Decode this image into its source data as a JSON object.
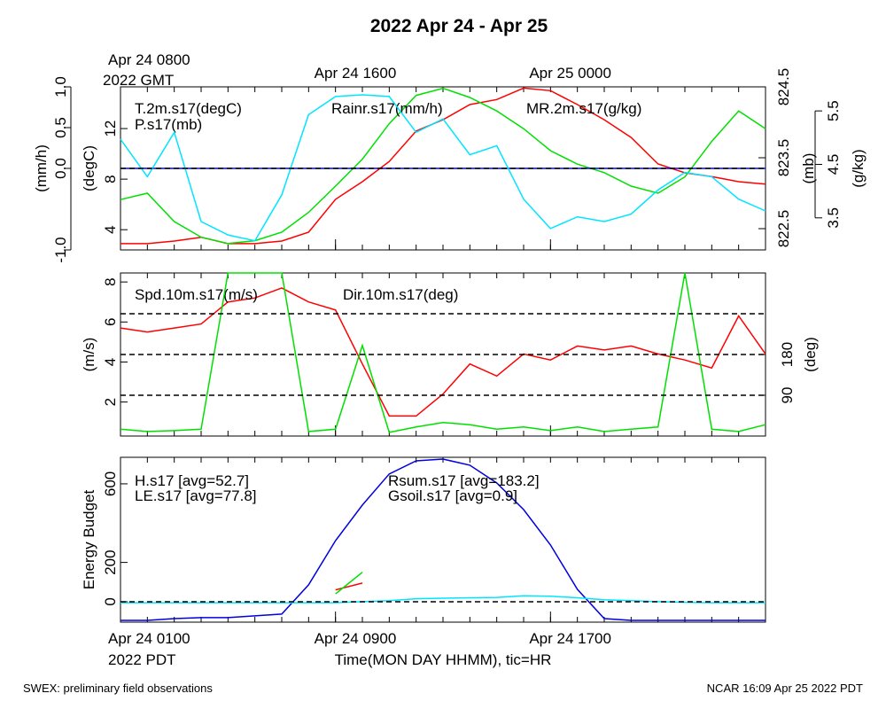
{
  "chart_data": {
    "type": "multi-panel",
    "title": "2022 Apr 24 - Apr 25",
    "xlabel": "Time(MON DAY HHMM), tic=HR",
    "top_xsublabel": "2022 GMT",
    "bottom_xsublabel": "2022 PDT",
    "footer_left": "SWEX: preliminary field observations",
    "footer_right": "NCAR 16:09 Apr 25 2022 PDT",
    "x": [
      0,
      1,
      2,
      3,
      4,
      5,
      6,
      7,
      8,
      9,
      10,
      11,
      12,
      13,
      14,
      15,
      16,
      17,
      18,
      19,
      20,
      21,
      22,
      23,
      24
    ],
    "xlim": [
      0,
      24
    ],
    "xticks": [
      {
        "value": 0,
        "label": "Apr 24 0100"
      },
      {
        "value": 8,
        "label": "Apr 24 0900"
      },
      {
        "value": 16,
        "label": "Apr 24 1700"
      }
    ],
    "top_xticks": [
      {
        "value": 0,
        "label": "Apr 24 0800"
      },
      {
        "value": 8,
        "label": "Apr 24 1600"
      },
      {
        "value": 16,
        "label": "Apr 25 0000"
      }
    ],
    "panels": [
      {
        "type": "line",
        "axes": [
          {
            "label": "(mm/h)",
            "ylim": [
              -1,
              1
            ],
            "yticks": [
              {
                "value": -1,
                "label": "-1.0"
              },
              {
                "value": 0,
                "label": "0.0"
              },
              {
                "value": 0.5,
                "label": "0.5"
              },
              {
                "value": 1,
                "label": "1.0"
              }
            ]
          },
          {
            "label": "(degC)",
            "ylim": [
              2.4,
              15.3
            ],
            "yticks": [
              4,
              8,
              12
            ]
          },
          {
            "label": "(mb)",
            "ylim": [
              822.2,
              824.5
            ],
            "yticks": [
              822.5,
              823.5,
              824.5
            ]
          },
          {
            "label": "(g/kg)",
            "ylim": [
              2.9,
              5.95
            ],
            "yticks": [
              3.5,
              4.5,
              5.5
            ]
          }
        ],
        "hlines": [
          {
            "axis": 0,
            "values": [
              0
            ]
          }
        ],
        "series": [
          {
            "name": "T.2m.s17(degC)",
            "color": "#ff0000",
            "axis": 1,
            "values": [
              2.9,
              2.9,
              3.1,
              3.4,
              2.9,
              2.9,
              3.1,
              3.8,
              6.4,
              7.8,
              9.4,
              11.8,
              12.7,
              13.9,
              14.3,
              15.2,
              15.0,
              13.9,
              12.7,
              11.3,
              9.2,
              8.5,
              8.2,
              7.8,
              7.6
            ]
          },
          {
            "name": "P.s17(mb)",
            "color": "#00e000",
            "axis": 2,
            "values": [
              822.91,
              823.0,
              822.6,
              822.38,
              822.29,
              822.33,
              822.45,
              822.73,
              823.1,
              823.48,
              823.98,
              824.38,
              824.48,
              824.35,
              824.16,
              823.91,
              823.6,
              823.41,
              823.29,
              823.1,
              823.0,
              823.23,
              823.73,
              824.16,
              823.91
            ]
          },
          {
            "name": "Rainr.s17(mm/h)",
            "color": "#0000ff",
            "axis": 0,
            "values": [
              0,
              0,
              0,
              0,
              0,
              0,
              0,
              0,
              0,
              0,
              0,
              0,
              0,
              0,
              0,
              0,
              0,
              0,
              0,
              0,
              0,
              0,
              0,
              0,
              0
            ]
          },
          {
            "name": "MR.2m.s17(g/kg)",
            "color": "#00e5ff",
            "axis": 3,
            "values": [
              4.97,
              4.27,
              5.1,
              3.43,
              3.18,
              3.07,
              3.93,
              5.43,
              5.77,
              5.8,
              5.77,
              5.1,
              5.35,
              4.68,
              4.85,
              3.85,
              3.3,
              3.52,
              3.43,
              3.57,
              4.02,
              4.35,
              4.27,
              3.85,
              3.63
            ]
          }
        ]
      },
      {
        "type": "line",
        "axes": [
          {
            "label": "(m/s)",
            "ylim": [
              0.3,
              8.45
            ],
            "yticks": [
              2,
              4,
              6,
              8
            ]
          },
          {
            "label": "(deg)",
            "ylim": [
              0,
              360
            ],
            "yticks": [
              90,
              180
            ]
          }
        ],
        "hlines": [
          {
            "axis": 1,
            "values": [
              90,
              180,
              270
            ]
          }
        ],
        "series": [
          {
            "name": "Spd.10m.s17(m/s)",
            "color": "#ff0000",
            "axis": 0,
            "values": [
              5.7,
              5.5,
              5.7,
              5.9,
              7.0,
              7.2,
              7.7,
              7.0,
              6.6,
              3.9,
              1.3,
              1.3,
              2.4,
              3.9,
              3.3,
              4.4,
              4.1,
              4.8,
              4.6,
              4.8,
              4.4,
              4.1,
              3.7,
              6.3,
              4.4
            ]
          },
          {
            "name": "Dir.10m.s17(deg)",
            "color": "#00e000",
            "axis": 1,
            "values": [
              15,
              10,
              12,
              15,
              360,
              360,
              360,
              10,
              15,
              200,
              8,
              20,
              30,
              25,
              15,
              20,
              12,
              20,
              10,
              15,
              20,
              360,
              15,
              10,
              25
            ]
          }
        ]
      },
      {
        "type": "line",
        "axes": [
          {
            "label": "Energy Budget",
            "ylim": [
              -104,
              735
            ],
            "yticks": [
              0,
              200,
              600
            ]
          }
        ],
        "hlines": [
          {
            "axis": 0,
            "values": [
              0
            ]
          }
        ],
        "series": [
          {
            "name": "H.s17 [avg=52.7]",
            "color": "#ff0000",
            "axis": 0,
            "values": [
              null,
              null,
              null,
              null,
              null,
              null,
              null,
              null,
              60,
              95,
              null,
              null,
              null,
              null,
              null,
              null,
              null,
              null,
              null,
              null,
              null,
              null,
              null,
              null,
              null
            ]
          },
          {
            "name": "LE.s17 [avg=77.8]",
            "color": "#00e000",
            "axis": 0,
            "values": [
              null,
              null,
              null,
              null,
              null,
              null,
              null,
              null,
              40,
              150,
              null,
              null,
              null,
              null,
              null,
              null,
              null,
              null,
              null,
              null,
              null,
              null,
              null,
              null,
              null
            ]
          },
          {
            "name": "Rsum.s17 [avg=183.2]",
            "color": "#0000e0",
            "axis": 0,
            "values": [
              -95,
              -95,
              -86,
              -81,
              -81,
              -72,
              -63,
              86,
              311,
              492,
              650,
              717,
              726,
              695,
              604,
              469,
              289,
              63,
              -86,
              -95,
              -95,
              -95,
              -95,
              -95,
              -95
            ]
          },
          {
            "name": "Gsoil.s17 [avg=0.9]",
            "color": "#00e5ff",
            "axis": 0,
            "values": [
              -5,
              -5,
              -5,
              -5,
              -5,
              -5,
              -5,
              -5,
              -5,
              0,
              5,
              15,
              18,
              20,
              22,
              30,
              28,
              20,
              10,
              5,
              0,
              -3,
              -5,
              -5,
              -5
            ]
          }
        ]
      }
    ]
  }
}
